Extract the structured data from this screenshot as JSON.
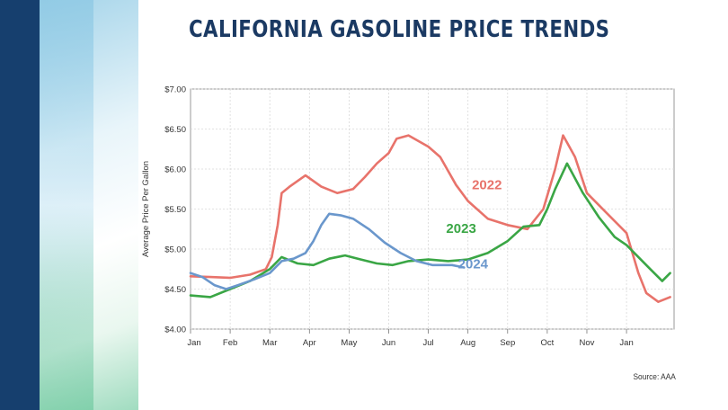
{
  "title": "CALIFORNIA GASOLINE PRICE TRENDS",
  "source": "Source: AAA",
  "colors": {
    "2022": "#e8736b",
    "2023": "#3aa645",
    "2024": "#6a97cc",
    "band": "#163f6e",
    "title": "#1b3a63"
  },
  "chart_data": {
    "type": "line",
    "title": "CALIFORNIA GASOLINE PRICE TRENDS",
    "xlabel": "",
    "ylabel": "Average Price Per Gallon",
    "xlim": [
      0,
      12.2
    ],
    "ylim": [
      4.0,
      7.0
    ],
    "x_ticks": [
      "Jan",
      "Feb",
      "Mar",
      "Apr",
      "May",
      "Jun",
      "Jul",
      "Aug",
      "Sep",
      "Oct",
      "Nov",
      "Jan"
    ],
    "y_ticks": [
      "$4.00",
      "$4.50",
      "$5.00",
      "$5.50",
      "$6.00",
      "$6.50",
      "$7.00"
    ],
    "grid": true,
    "legend": "inline labels",
    "series": [
      {
        "name": "2022",
        "x": [
          0,
          0.5,
          1,
          1.5,
          1.9,
          2.05,
          2.2,
          2.3,
          2.5,
          2.9,
          3.3,
          3.7,
          4.1,
          4.4,
          4.7,
          5.0,
          5.2,
          5.5,
          6.0,
          6.3,
          6.7,
          7.0,
          7.5,
          8.0,
          8.5,
          8.9,
          9.2,
          9.4,
          9.7,
          10.0,
          10.5,
          11.0,
          11.3,
          11.5,
          11.8,
          12.1
        ],
        "values": [
          4.66,
          4.65,
          4.64,
          4.68,
          4.75,
          4.9,
          5.3,
          5.7,
          5.78,
          5.92,
          5.78,
          5.7,
          5.75,
          5.9,
          6.07,
          6.2,
          6.38,
          6.42,
          6.28,
          6.15,
          5.8,
          5.6,
          5.38,
          5.3,
          5.25,
          5.5,
          6.0,
          6.42,
          6.15,
          5.7,
          5.45,
          5.2,
          4.7,
          4.45,
          4.34,
          4.4
        ]
      },
      {
        "name": "2023",
        "x": [
          0,
          0.5,
          1,
          1.5,
          2.0,
          2.3,
          2.7,
          3.1,
          3.5,
          3.9,
          4.3,
          4.7,
          5.1,
          5.5,
          6.0,
          6.5,
          7.0,
          7.5,
          8.0,
          8.4,
          8.8,
          9.0,
          9.2,
          9.5,
          9.9,
          10.3,
          10.7,
          11.0,
          11.3,
          11.6,
          11.9,
          12.1
        ],
        "values": [
          4.42,
          4.4,
          4.5,
          4.6,
          4.75,
          4.9,
          4.82,
          4.8,
          4.88,
          4.92,
          4.87,
          4.82,
          4.8,
          4.85,
          4.87,
          4.85,
          4.87,
          4.95,
          5.1,
          5.28,
          5.3,
          5.5,
          5.75,
          6.07,
          5.7,
          5.4,
          5.15,
          5.05,
          4.9,
          4.75,
          4.6,
          4.7
        ]
      },
      {
        "name": "2024",
        "x": [
          0,
          0.3,
          0.6,
          0.9,
          1.2,
          1.6,
          2.0,
          2.3,
          2.6,
          2.9,
          3.1,
          3.3,
          3.5,
          3.8,
          4.1,
          4.5,
          4.9,
          5.3,
          5.7,
          6.1,
          6.6,
          6.9
        ],
        "values": [
          4.7,
          4.65,
          4.55,
          4.5,
          4.55,
          4.62,
          4.7,
          4.85,
          4.88,
          4.95,
          5.1,
          5.3,
          5.44,
          5.42,
          5.38,
          5.25,
          5.08,
          4.95,
          4.85,
          4.8,
          4.8,
          4.77
        ]
      }
    ],
    "series_label_positions_note": ""
  }
}
